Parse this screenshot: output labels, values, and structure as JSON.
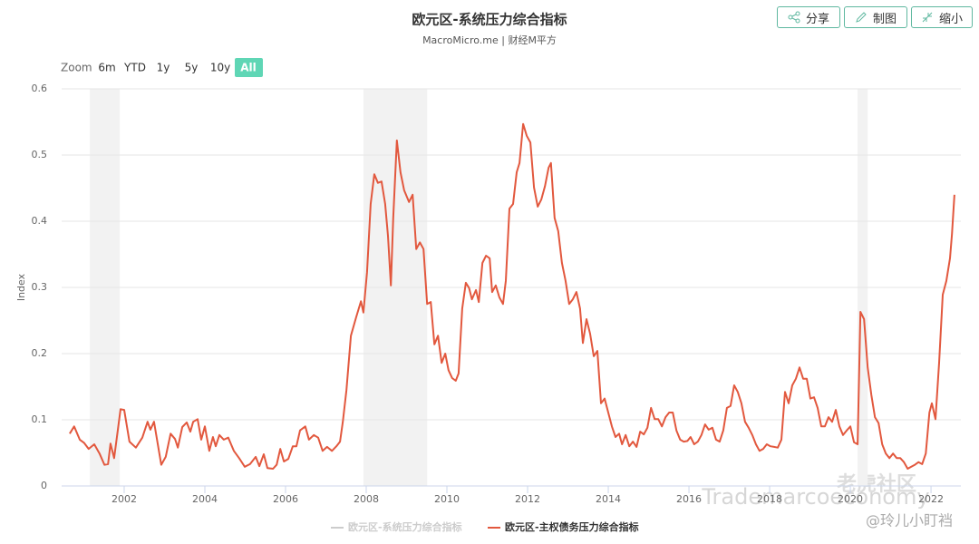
{
  "header": {
    "buttons": [
      "分享",
      "制图",
      "缩小"
    ],
    "zoom_label": "Zoom",
    "zoom_options": [
      "6m",
      "YTD",
      "1y",
      "5y",
      "10y",
      "All"
    ],
    "zoom_active": 5
  },
  "watermarks": [
    "老虎社区",
    "@玲儿小盯裆",
    "Trademarcoeconomy"
  ],
  "chart_data": {
    "type": "line",
    "title": "欧元区-系统压力综合指标",
    "subtitle": "MacroMicro.me | 财经M平方",
    "y_label": "Index",
    "xlim": [
      2000.45,
      2022.74
    ],
    "xticks": [
      2002,
      2004,
      2006,
      2008,
      2010,
      2012,
      2014,
      2016,
      2018,
      2020,
      2022
    ],
    "ylim": [
      0,
      0.6
    ],
    "yticks": [
      0,
      0.1,
      0.2,
      0.3,
      0.4,
      0.5,
      0.6
    ],
    "grid": true,
    "bands": [
      [
        2001.15,
        2001.89
      ],
      [
        2007.93,
        2009.51
      ],
      [
        2020.18,
        2020.43
      ]
    ],
    "band_color": "#f2f2f2",
    "x": [
      2000.65,
      2000.76,
      2000.9,
      2001.01,
      2001.12,
      2001.26,
      2001.39,
      2001.51,
      2001.6,
      2001.66,
      2001.75,
      2001.91,
      2002.0,
      2002.13,
      2002.29,
      2002.45,
      2002.58,
      2002.65,
      2002.74,
      2002.92,
      2003.03,
      2003.15,
      2003.26,
      2003.33,
      2003.44,
      2003.55,
      2003.64,
      2003.71,
      2003.82,
      2003.91,
      2004.0,
      2004.11,
      2004.2,
      2004.27,
      2004.36,
      2004.47,
      2004.58,
      2004.72,
      2004.85,
      2004.99,
      2005.12,
      2005.26,
      2005.35,
      2005.46,
      2005.55,
      2005.69,
      2005.78,
      2005.87,
      2005.96,
      2006.07,
      2006.18,
      2006.27,
      2006.36,
      2006.49,
      2006.58,
      2006.7,
      2006.81,
      2006.92,
      2007.03,
      2007.15,
      2007.26,
      2007.35,
      2007.42,
      2007.51,
      2007.62,
      2007.75,
      2007.87,
      2007.93,
      2008.02,
      2008.11,
      2008.2,
      2008.29,
      2008.38,
      2008.47,
      2008.54,
      2008.61,
      2008.67,
      2008.76,
      2008.85,
      2008.94,
      2009.06,
      2009.15,
      2009.24,
      2009.33,
      2009.42,
      2009.51,
      2009.6,
      2009.69,
      2009.78,
      2009.87,
      2009.96,
      2010.04,
      2010.13,
      2010.22,
      2010.29,
      2010.38,
      2010.47,
      2010.55,
      2010.62,
      2010.72,
      2010.79,
      2010.88,
      2010.97,
      2011.06,
      2011.12,
      2011.21,
      2011.3,
      2011.39,
      2011.46,
      2011.55,
      2011.64,
      2011.73,
      2011.8,
      2011.89,
      2011.98,
      2012.07,
      2012.16,
      2012.25,
      2012.34,
      2012.43,
      2012.52,
      2012.58,
      2012.67,
      2012.76,
      2012.85,
      2012.94,
      2013.03,
      2013.12,
      2013.21,
      2013.3,
      2013.37,
      2013.46,
      2013.55,
      2013.64,
      2013.73,
      2013.82,
      2013.91,
      2014.0,
      2014.09,
      2014.18,
      2014.27,
      2014.34,
      2014.43,
      2014.52,
      2014.61,
      2014.7,
      2014.79,
      2014.88,
      2014.97,
      2015.06,
      2015.15,
      2015.24,
      2015.33,
      2015.42,
      2015.51,
      2015.6,
      2015.69,
      2015.78,
      2015.87,
      2015.96,
      2016.04,
      2016.13,
      2016.22,
      2016.31,
      2016.4,
      2016.49,
      2016.58,
      2016.67,
      2016.76,
      2016.85,
      2016.94,
      2017.03,
      2017.12,
      2017.21,
      2017.3,
      2017.39,
      2017.48,
      2017.57,
      2017.66,
      2017.75,
      2017.84,
      2017.93,
      2018.02,
      2018.11,
      2018.2,
      2018.29,
      2018.38,
      2018.47,
      2018.56,
      2018.65,
      2018.74,
      2018.83,
      2018.92,
      2019.01,
      2019.1,
      2019.19,
      2019.28,
      2019.37,
      2019.46,
      2019.55,
      2019.64,
      2019.73,
      2019.82,
      2019.91,
      2020.0,
      2020.09,
      2020.18,
      2020.25,
      2020.34,
      2020.43,
      2020.52,
      2020.61,
      2020.7,
      2020.79,
      2020.88,
      2020.97,
      2021.06,
      2021.15,
      2021.24,
      2021.33,
      2021.42,
      2021.51,
      2021.6,
      2021.69,
      2021.78,
      2021.87,
      2021.96,
      2022.02,
      2022.11,
      2022.2,
      2022.29,
      2022.38,
      2022.47,
      2022.52,
      2022.58
    ],
    "series": [
      {
        "name": "欧元区-系统压力综合指标",
        "color": "#cccccc",
        "visible": false
      },
      {
        "name": "欧元区-主权债务压力综合指标",
        "color": "#e2583e",
        "values": [
          0.079,
          0.09,
          0.07,
          0.065,
          0.056,
          0.063,
          0.049,
          0.032,
          0.033,
          0.064,
          0.042,
          0.116,
          0.115,
          0.067,
          0.058,
          0.073,
          0.097,
          0.085,
          0.097,
          0.032,
          0.044,
          0.079,
          0.071,
          0.058,
          0.089,
          0.096,
          0.082,
          0.097,
          0.101,
          0.07,
          0.09,
          0.053,
          0.074,
          0.06,
          0.077,
          0.07,
          0.073,
          0.053,
          0.042,
          0.029,
          0.033,
          0.044,
          0.03,
          0.048,
          0.027,
          0.026,
          0.032,
          0.056,
          0.037,
          0.041,
          0.06,
          0.06,
          0.084,
          0.09,
          0.07,
          0.077,
          0.073,
          0.053,
          0.059,
          0.053,
          0.06,
          0.067,
          0.097,
          0.145,
          0.227,
          0.255,
          0.279,
          0.262,
          0.323,
          0.426,
          0.471,
          0.458,
          0.46,
          0.426,
          0.378,
          0.303,
          0.405,
          0.522,
          0.474,
          0.447,
          0.429,
          0.44,
          0.358,
          0.368,
          0.358,
          0.275,
          0.278,
          0.214,
          0.227,
          0.186,
          0.2,
          0.175,
          0.163,
          0.159,
          0.17,
          0.268,
          0.307,
          0.299,
          0.282,
          0.296,
          0.278,
          0.337,
          0.348,
          0.344,
          0.293,
          0.303,
          0.285,
          0.275,
          0.31,
          0.419,
          0.426,
          0.474,
          0.488,
          0.547,
          0.529,
          0.519,
          0.451,
          0.422,
          0.433,
          0.453,
          0.481,
          0.488,
          0.405,
          0.385,
          0.337,
          0.31,
          0.275,
          0.282,
          0.293,
          0.268,
          0.216,
          0.252,
          0.23,
          0.196,
          0.204,
          0.125,
          0.132,
          0.111,
          0.09,
          0.074,
          0.079,
          0.063,
          0.077,
          0.06,
          0.067,
          0.059,
          0.082,
          0.078,
          0.088,
          0.118,
          0.101,
          0.101,
          0.09,
          0.104,
          0.111,
          0.111,
          0.084,
          0.07,
          0.067,
          0.068,
          0.074,
          0.063,
          0.067,
          0.077,
          0.093,
          0.085,
          0.088,
          0.07,
          0.067,
          0.084,
          0.118,
          0.121,
          0.152,
          0.142,
          0.125,
          0.097,
          0.088,
          0.077,
          0.063,
          0.053,
          0.056,
          0.063,
          0.06,
          0.059,
          0.058,
          0.07,
          0.142,
          0.125,
          0.152,
          0.162,
          0.179,
          0.162,
          0.162,
          0.132,
          0.134,
          0.118,
          0.09,
          0.09,
          0.104,
          0.097,
          0.115,
          0.09,
          0.077,
          0.084,
          0.09,
          0.066,
          0.063,
          0.263,
          0.252,
          0.179,
          0.138,
          0.104,
          0.095,
          0.063,
          0.049,
          0.042,
          0.049,
          0.042,
          0.042,
          0.036,
          0.026,
          0.029,
          0.032,
          0.036,
          0.033,
          0.049,
          0.111,
          0.125,
          0.101,
          0.186,
          0.289,
          0.31,
          0.344,
          0.381,
          0.44
        ]
      }
    ]
  }
}
